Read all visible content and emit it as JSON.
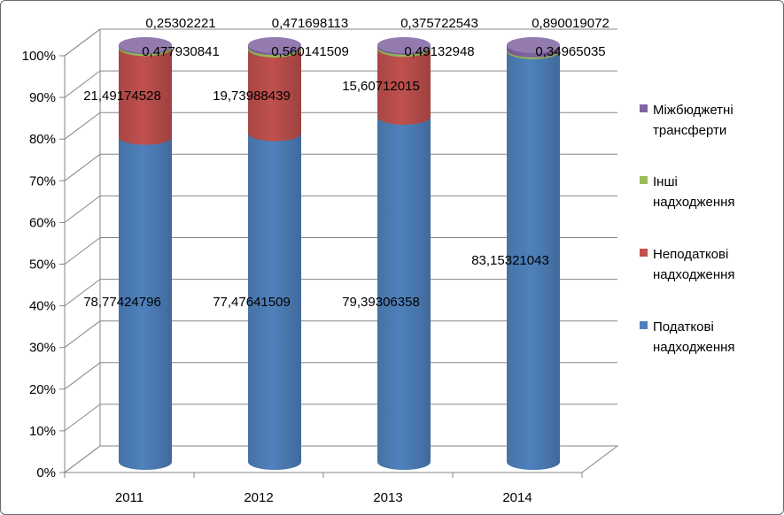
{
  "chart_data": {
    "type": "bar",
    "stacked": "percent",
    "shape": "cylinder-3d",
    "categories": [
      "2011",
      "2012",
      "2013",
      "2014"
    ],
    "series": [
      {
        "name": "Податкові надходження",
        "color": "#4F81BD",
        "values": [
          78.77424796,
          77.47641509,
          79.39306358,
          83.15321043
        ],
        "labels": [
          "78,77424796",
          "77,47641509",
          "79,39306358",
          "83,15321043"
        ]
      },
      {
        "name": "Неподаткові надходження",
        "color": "#C0504D",
        "values": [
          21.49174528,
          19.73988439,
          15.60712015,
          0
        ],
        "labels": [
          "21,49174528",
          "19,73988439",
          "15,60712015",
          ""
        ]
      },
      {
        "name": "Інші надходження",
        "color": "#9BBB59",
        "values": [
          0.477930841,
          0.560141509,
          0.49132948,
          0.34965035
        ],
        "labels": [
          "0,477930841",
          "0,560141509",
          "0,49132948",
          "0,34965035"
        ]
      },
      {
        "name": "Міжбюджетні трансферти",
        "color": "#8064A2",
        "values": [
          0.25302221,
          0.471698113,
          0.375722543,
          0.890019072
        ],
        "labels": [
          "0,25302221",
          "0,471698113",
          "0,375722543",
          "0,890019072"
        ]
      }
    ],
    "legend": [
      {
        "lines": [
          "Міжбюджетні",
          "трансферти"
        ],
        "color": "#8064A2"
      },
      {
        "lines": [
          "Інші",
          "надходження"
        ],
        "color": "#9BBB59"
      },
      {
        "lines": [
          "Неподаткові",
          "надходження"
        ],
        "color": "#C0504D"
      },
      {
        "lines": [
          "Податкові",
          "надходження"
        ],
        "color": "#4F81BD"
      }
    ],
    "yticks": [
      "0%",
      "10%",
      "20%",
      "30%",
      "40%",
      "50%",
      "60%",
      "70%",
      "80%",
      "90%",
      "100%"
    ],
    "ylim": [
      0,
      100
    ],
    "grid": true,
    "legend_position": "right"
  }
}
